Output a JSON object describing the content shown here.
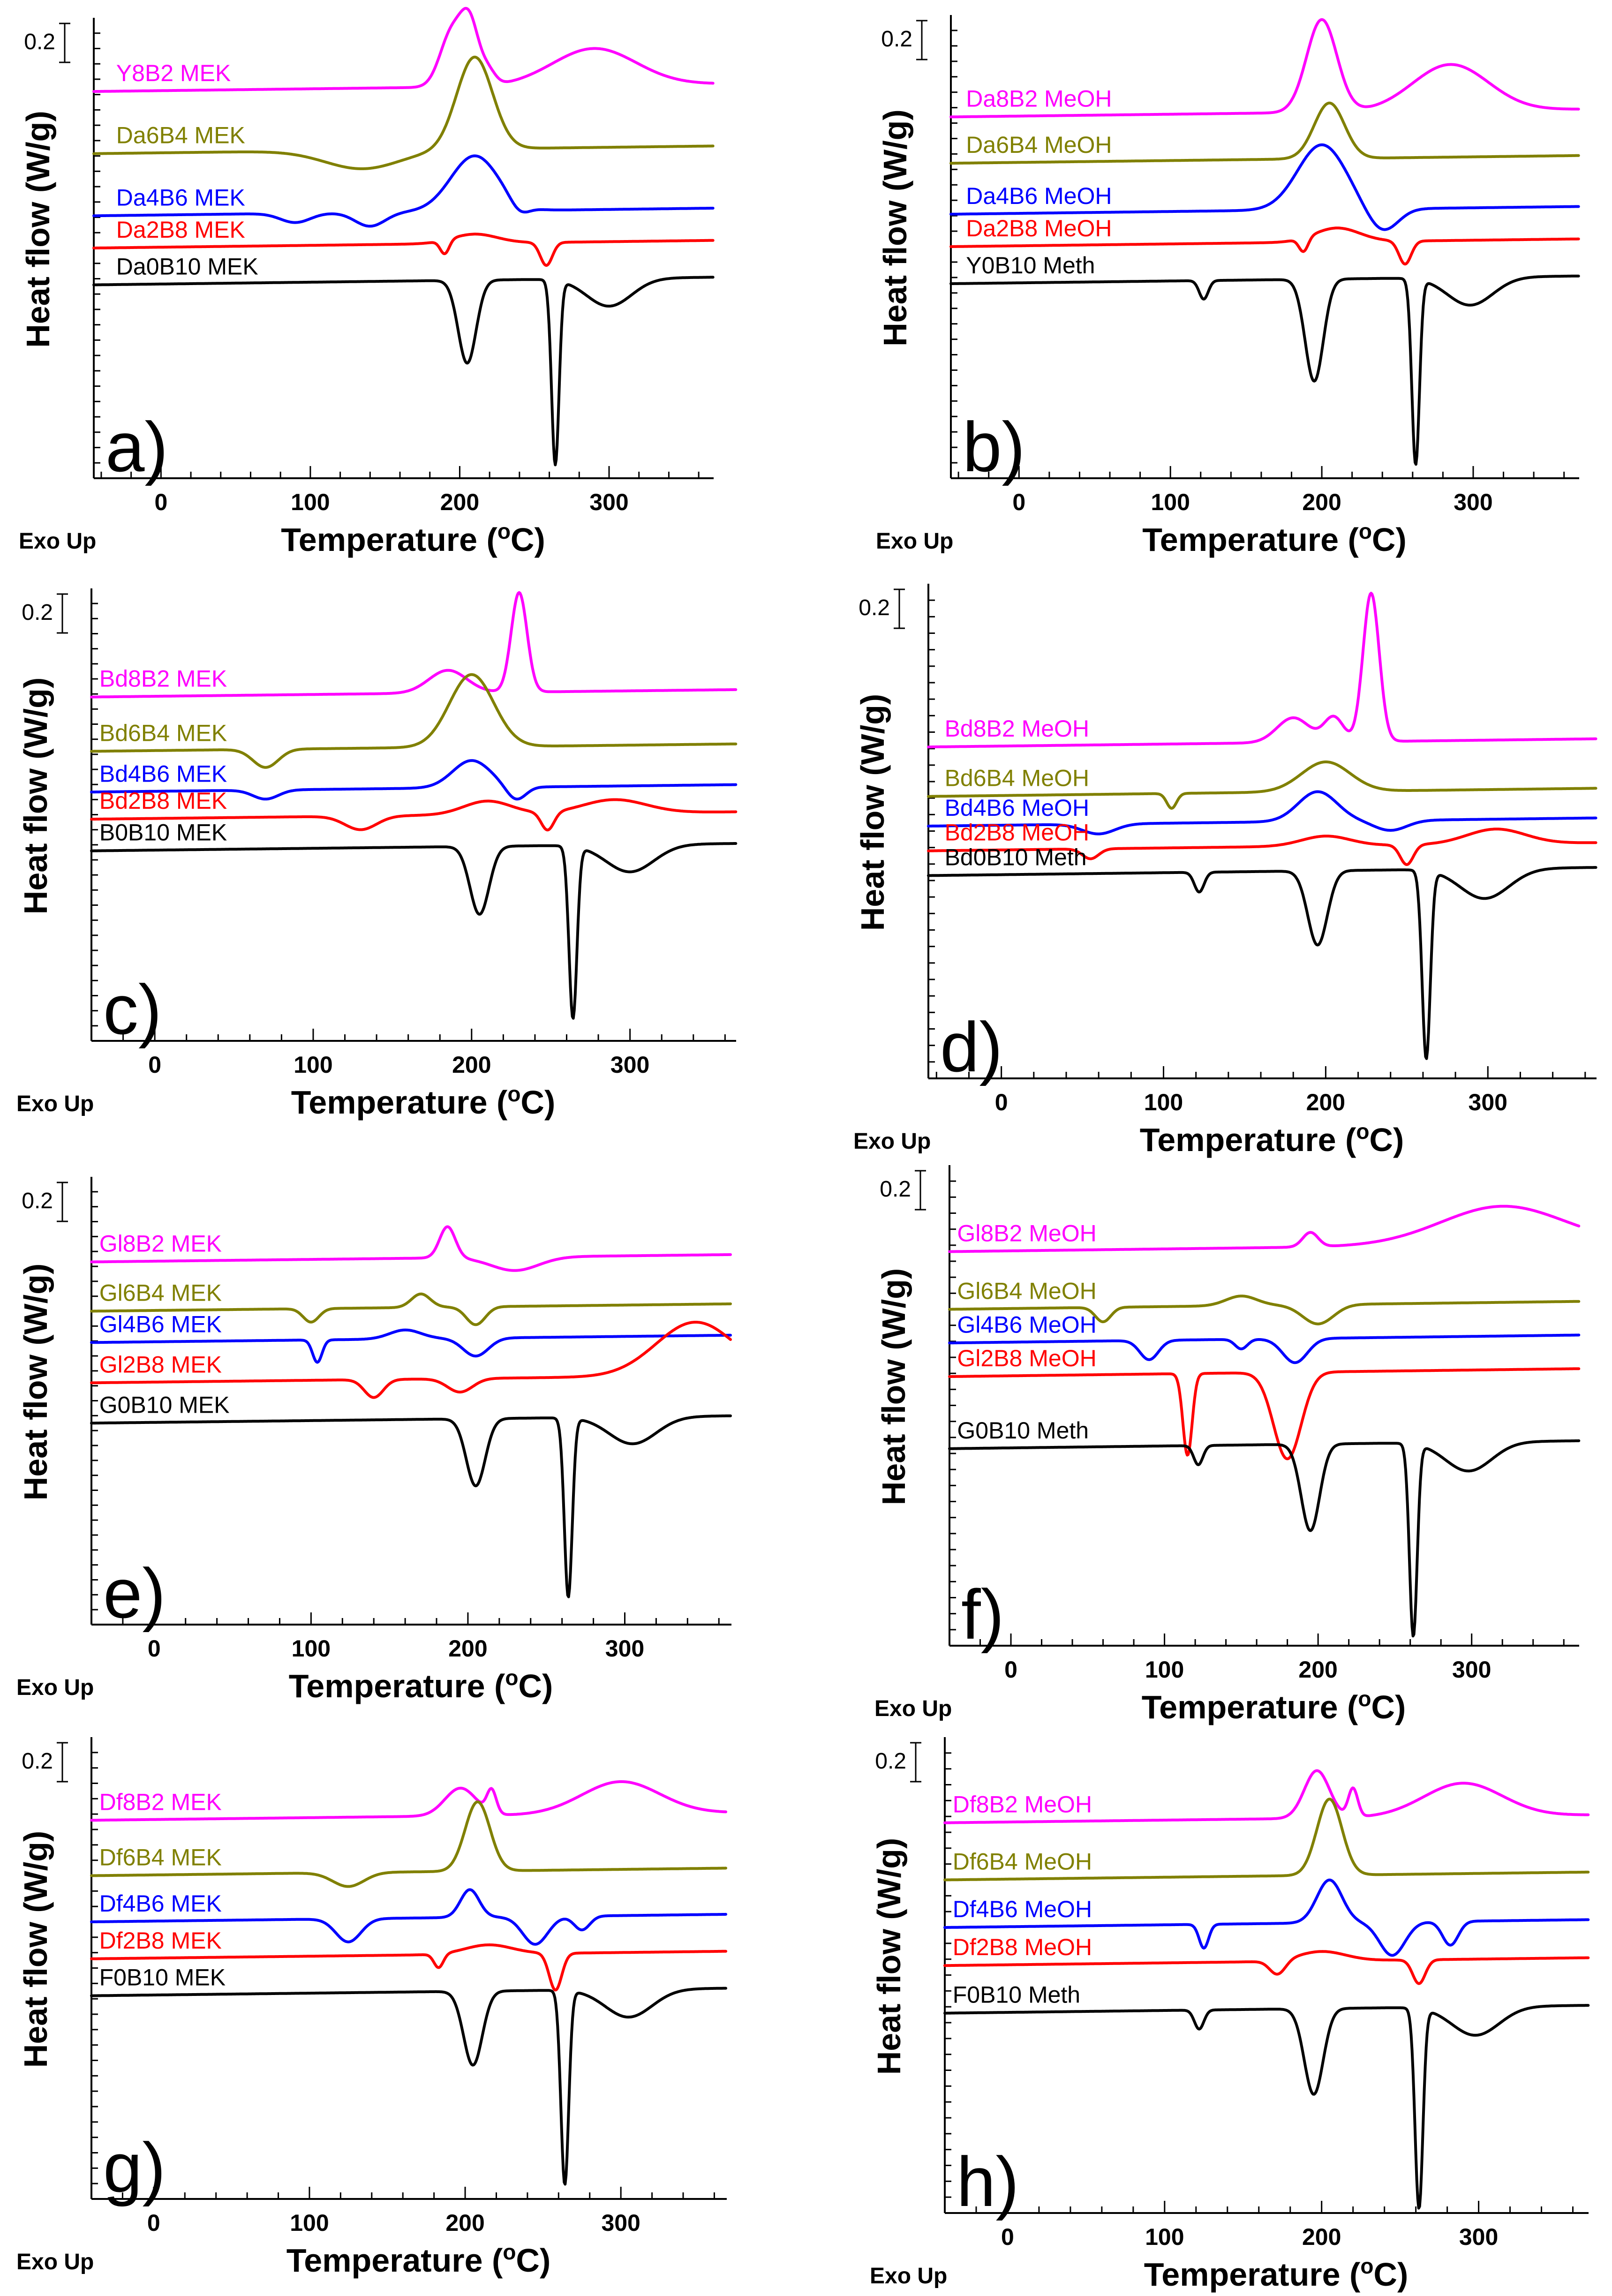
{
  "chart_data": [
    {
      "type": "line",
      "panel_label": "a)",
      "xlabel": "Temperature (°C)",
      "ylabel": "Heat flow (W/g)",
      "exo_label": "Exo Up",
      "scale_bar_label": "0.2",
      "xlim": [
        -45,
        370
      ],
      "xticks": [
        "0",
        "100",
        "200",
        "300"
      ],
      "series": [
        {
          "name": "Y8B2 MEK",
          "color": "#ff00ff",
          "label_x": -30,
          "baseline": 0.84,
          "features": [
            [
              195,
              -0.12,
              8
            ],
            [
              207,
              -0.12,
              6
            ],
            [
              219,
              -0.03,
              5
            ],
            [
              290,
              -0.08,
              28
            ]
          ]
        },
        {
          "name": "Da6B4 MEK",
          "color": "#808000",
          "label_x": -30,
          "baseline": 0.705,
          "features": [
            [
              135,
              0.04,
              25
            ],
            [
              210,
              -0.2,
              12
            ]
          ]
        },
        {
          "name": "Da4B6 MEK",
          "color": "#0000ff",
          "label_x": -30,
          "baseline": 0.57,
          "features": [
            [
              90,
              0.02,
              10
            ],
            [
              140,
              0.03,
              10
            ],
            [
              210,
              -0.12,
              16
            ],
            [
              240,
              0.02,
              6
            ]
          ]
        },
        {
          "name": "Da2B8 MEK",
          "color": "#ff0000",
          "label_x": -30,
          "baseline": 0.5,
          "features": [
            [
              190,
              0.03,
              3
            ],
            [
              210,
              -0.02,
              15
            ],
            [
              258,
              0.05,
              4
            ]
          ]
        },
        {
          "name": "Da0B10 MEK",
          "color": "#000000",
          "label_x": -30,
          "baseline": 0.42,
          "features": [
            [
              205,
              0.18,
              6
            ],
            [
              264,
              0.4,
              2.5
            ],
            [
              300,
              0.06,
              15
            ]
          ]
        }
      ]
    },
    {
      "type": "line",
      "panel_label": "b)",
      "xlabel": "Temperature (°C)",
      "ylabel": "Heat flow (W/g)",
      "exo_label": "Exo Up",
      "scale_bar_label": "0.2",
      "xlim": [
        -45,
        370
      ],
      "xticks": [
        "0",
        "100",
        "200",
        "300"
      ],
      "series": [
        {
          "name": "Da8B2 MeOH",
          "color": "#ff00ff",
          "label_x": -35,
          "baseline": 0.78,
          "features": [
            [
              200,
              -0.2,
              10
            ],
            [
              285,
              -0.1,
              25
            ]
          ]
        },
        {
          "name": "Da6B4 MeOH",
          "color": "#808000",
          "label_x": -35,
          "baseline": 0.68,
          "features": [
            [
              205,
              -0.12,
              10
            ]
          ]
        },
        {
          "name": "Da4B6 MeOH",
          "color": "#0000ff",
          "label_x": -35,
          "baseline": 0.57,
          "features": [
            [
              200,
              -0.14,
              16
            ],
            [
              240,
              0.05,
              10
            ]
          ]
        },
        {
          "name": "Da2B8 MeOH",
          "color": "#ff0000",
          "label_x": -35,
          "baseline": 0.5,
          "features": [
            [
              188,
              0.03,
              3
            ],
            [
              210,
              -0.03,
              15
            ],
            [
              255,
              0.05,
              4
            ]
          ]
        },
        {
          "name": "Y0B10 Meth",
          "color": "#000000",
          "label_x": -35,
          "baseline": 0.42,
          "features": [
            [
              122,
              0.04,
              3
            ],
            [
              195,
              0.22,
              6
            ],
            [
              262,
              0.4,
              2.5
            ],
            [
              298,
              0.06,
              15
            ]
          ]
        }
      ]
    },
    {
      "type": "line",
      "panel_label": "c)",
      "xlabel": "Temperature (°C)",
      "ylabel": "Heat flow (W/g)",
      "exo_label": "Exo Up",
      "scale_bar_label": "0.2",
      "xlim": [
        -40,
        367
      ],
      "xticks": [
        "0",
        "100",
        "200",
        "300"
      ],
      "series": [
        {
          "name": "Bd8B2 MEK",
          "color": "#ff00ff",
          "label_x": -35,
          "baseline": 0.76,
          "features": [
            [
              185,
              -0.05,
              12
            ],
            [
              230,
              -0.22,
              5
            ]
          ]
        },
        {
          "name": "Bd6B4 MEK",
          "color": "#808000",
          "label_x": -35,
          "baseline": 0.64,
          "features": [
            [
              70,
              0.04,
              8
            ],
            [
              200,
              -0.16,
              14
            ]
          ]
        },
        {
          "name": "Bd4B6 MEK",
          "color": "#0000ff",
          "label_x": -35,
          "baseline": 0.55,
          "features": [
            [
              70,
              0.02,
              8
            ],
            [
              200,
              -0.06,
              12
            ],
            [
              228,
              0.03,
              6
            ]
          ]
        },
        {
          "name": "Bd2B8 MEK",
          "color": "#ff0000",
          "label_x": -35,
          "baseline": 0.49,
          "features": [
            [
              130,
              0.03,
              10
            ],
            [
              210,
              -0.03,
              15
            ],
            [
              248,
              0.04,
              4
            ],
            [
              290,
              -0.03,
              20
            ]
          ]
        },
        {
          "name": "B0B10 MEK",
          "color": "#000000",
          "label_x": -35,
          "baseline": 0.42,
          "features": [
            [
              205,
              0.15,
              6
            ],
            [
              264,
              0.38,
              2.5
            ],
            [
              300,
              0.06,
              15
            ]
          ]
        }
      ]
    },
    {
      "type": "line",
      "panel_label": "d)",
      "xlabel": "Temperature (°C)",
      "ylabel": "Heat flow (W/g)",
      "exo_label": "Exo Up",
      "scale_bar_label": "0.2",
      "xlim": [
        -45,
        367
      ],
      "xticks": [
        "0",
        "100",
        "200",
        "300"
      ],
      "series": [
        {
          "name": "Bd8B2 MeOH",
          "color": "#ff00ff",
          "label_x": -35,
          "baseline": 0.67,
          "features": [
            [
              180,
              -0.05,
              10
            ],
            [
              205,
              -0.05,
              6
            ],
            [
              228,
              -0.3,
              5
            ]
          ]
        },
        {
          "name": "Bd6B4 MeOH",
          "color": "#808000",
          "label_x": -35,
          "baseline": 0.57,
          "features": [
            [
              105,
              0.03,
              3
            ],
            [
              200,
              -0.06,
              15
            ]
          ]
        },
        {
          "name": "Bd4B6 MeOH",
          "color": "#0000ff",
          "label_x": -35,
          "baseline": 0.51,
          "features": [
            [
              60,
              0.02,
              10
            ],
            [
              195,
              -0.06,
              12
            ],
            [
              240,
              0.02,
              10
            ]
          ]
        },
        {
          "name": "Bd2B8 MeOH",
          "color": "#ff0000",
          "label_x": -35,
          "baseline": 0.46,
          "features": [
            [
              55,
              0.02,
              5
            ],
            [
              200,
              -0.02,
              15
            ],
            [
              250,
              0.04,
              4
            ],
            [
              305,
              -0.03,
              18
            ]
          ]
        },
        {
          "name": "Bd0B10 Meth",
          "color": "#000000",
          "label_x": -35,
          "baseline": 0.41,
          "features": [
            [
              122,
              0.04,
              3
            ],
            [
              195,
              0.15,
              6
            ],
            [
              262,
              0.38,
              2.5
            ],
            [
              298,
              0.06,
              15
            ]
          ]
        }
      ]
    },
    {
      "type": "line",
      "panel_label": "e)",
      "xlabel": "Temperature (°C)",
      "ylabel": "Heat flow (W/g)",
      "exo_label": "Exo Up",
      "scale_bar_label": "0.2",
      "xlim": [
        -40,
        368
      ],
      "xticks": [
        "0",
        "100",
        "200",
        "300"
      ],
      "series": [
        {
          "name": "Gl8B2 MEK",
          "color": "#ff00ff",
          "label_x": -35,
          "baseline": 0.81,
          "features": [
            [
              187,
              -0.07,
              5
            ],
            [
              230,
              0.03,
              15
            ]
          ]
        },
        {
          "name": "Gl6B4 MEK",
          "color": "#808000",
          "label_x": -35,
          "baseline": 0.7,
          "features": [
            [
              100,
              0.03,
              5
            ],
            [
              170,
              -0.03,
              6
            ],
            [
              205,
              0.04,
              6
            ]
          ]
        },
        {
          "name": "Gl4B6 MEK",
          "color": "#0000ff",
          "label_x": -35,
          "baseline": 0.63,
          "features": [
            [
              104,
              0.05,
              3
            ],
            [
              160,
              -0.02,
              10
            ],
            [
              205,
              0.04,
              8
            ]
          ]
        },
        {
          "name": "Gl2B8 MEK",
          "color": "#ff0000",
          "label_x": -35,
          "baseline": 0.54,
          "features": [
            [
              140,
              0.04,
              6
            ],
            [
              195,
              0.03,
              8
            ],
            [
              345,
              -0.12,
              25
            ]
          ]
        },
        {
          "name": "G0B10 MEK",
          "color": "#000000",
          "label_x": -35,
          "baseline": 0.45,
          "features": [
            [
              205,
              0.15,
              6
            ],
            [
              264,
              0.4,
              2.5
            ],
            [
              305,
              0.06,
              15
            ]
          ]
        }
      ]
    },
    {
      "type": "line",
      "panel_label": "f)",
      "xlabel": "Temperature (°C)",
      "ylabel": "Heat flow (W/g)",
      "exo_label": "Exo Up",
      "scale_bar_label": "0.2",
      "xlim": [
        -40,
        370
      ],
      "xticks": [
        "0",
        "100",
        "200",
        "300"
      ],
      "series": [
        {
          "name": "Gl8B2 MeOH",
          "color": "#ff00ff",
          "label_x": -35,
          "baseline": 0.82,
          "features": [
            [
              195,
              -0.03,
              5
            ],
            [
              320,
              -0.08,
              40
            ]
          ]
        },
        {
          "name": "Gl6B4 MeOH",
          "color": "#808000",
          "label_x": -35,
          "baseline": 0.7,
          "features": [
            [
              60,
              0.03,
              5
            ],
            [
              150,
              -0.02,
              10
            ],
            [
              200,
              0.04,
              10
            ]
          ]
        },
        {
          "name": "Gl4B6 MeOH",
          "color": "#0000ff",
          "label_x": -35,
          "baseline": 0.63,
          "features": [
            [
              90,
              0.04,
              6
            ],
            [
              150,
              0.02,
              4
            ],
            [
              185,
              0.05,
              8
            ]
          ]
        },
        {
          "name": "Gl2B8 MeOH",
          "color": "#ff0000",
          "label_x": -35,
          "baseline": 0.56,
          "features": [
            [
              115,
              0.17,
              3
            ],
            [
              180,
              0.18,
              9
            ]
          ]
        },
        {
          "name": "G0B10 Meth",
          "color": "#000000",
          "label_x": -35,
          "baseline": 0.41,
          "features": [
            [
              122,
              0.04,
              3
            ],
            [
              195,
              0.18,
              6
            ],
            [
              262,
              0.4,
              2.5
            ],
            [
              298,
              0.06,
              15
            ]
          ]
        }
      ]
    },
    {
      "type": "line",
      "panel_label": "g)",
      "xlabel": "Temperature (°C)",
      "ylabel": "Heat flow (W/g)",
      "exo_label": "Exo Up",
      "scale_bar_label": "0.2",
      "xlim": [
        -40,
        368
      ],
      "xticks": [
        "0",
        "100",
        "200",
        "300"
      ],
      "series": [
        {
          "name": "Df8B2 MEK",
          "color": "#ff00ff",
          "label_x": -35,
          "baseline": 0.82,
          "features": [
            [
              197,
              -0.06,
              10
            ],
            [
              217,
              -0.05,
              3
            ],
            [
              300,
              -0.07,
              25
            ]
          ]
        },
        {
          "name": "Df6B4 MEK",
          "color": "#808000",
          "label_x": -35,
          "baseline": 0.7,
          "features": [
            [
              125,
              0.03,
              10
            ],
            [
              208,
              -0.15,
              8
            ]
          ]
        },
        {
          "name": "Df4B6 MEK",
          "color": "#0000ff",
          "label_x": -35,
          "baseline": 0.6,
          "features": [
            [
              125,
              0.05,
              8
            ],
            [
              203,
              -0.06,
              6
            ],
            [
              245,
              0.06,
              8
            ],
            [
              275,
              0.03,
              5
            ]
          ]
        },
        {
          "name": "Df2B8 MEK",
          "color": "#ff0000",
          "label_x": -35,
          "baseline": 0.52,
          "features": [
            [
              183,
              0.03,
              3
            ],
            [
              215,
              -0.02,
              15
            ],
            [
              258,
              0.08,
              4
            ]
          ]
        },
        {
          "name": "F0B10 MEK",
          "color": "#000000",
          "label_x": -35,
          "baseline": 0.44,
          "features": [
            [
              205,
              0.16,
              6
            ],
            [
              264,
              0.42,
              2.5
            ],
            [
              305,
              0.06,
              15
            ]
          ]
        }
      ]
    },
    {
      "type": "line",
      "panel_label": "h)",
      "xlabel": "Temperature (°C)",
      "ylabel": "Heat flow (W/g)",
      "exo_label": "Exo Up",
      "scale_bar_label": "0.2",
      "xlim": [
        -40,
        370
      ],
      "xticks": [
        "0",
        "100",
        "200",
        "300"
      ],
      "series": [
        {
          "name": "Df8B2 MeOH",
          "color": "#ff00ff",
          "label_x": -35,
          "baseline": 0.82,
          "features": [
            [
              197,
              -0.1,
              8
            ],
            [
              220,
              -0.06,
              3
            ],
            [
              290,
              -0.07,
              25
            ]
          ]
        },
        {
          "name": "Df6B4 MeOH",
          "color": "#808000",
          "label_x": -35,
          "baseline": 0.7,
          "features": [
            [
              205,
              -0.16,
              8
            ]
          ]
        },
        {
          "name": "Df4B6 MeOH",
          "color": "#0000ff",
          "label_x": -35,
          "baseline": 0.6,
          "features": [
            [
              125,
              0.05,
              3
            ],
            [
              205,
              -0.09,
              8
            ],
            [
              245,
              0.07,
              8
            ],
            [
              282,
              0.05,
              5
            ]
          ]
        },
        {
          "name": "Df2B8 MeOH",
          "color": "#ff0000",
          "label_x": -35,
          "baseline": 0.52,
          "features": [
            [
              172,
              0.03,
              5
            ],
            [
              200,
              -0.02,
              15
            ],
            [
              262,
              0.05,
              4
            ]
          ]
        },
        {
          "name": "F0B10 Meth",
          "color": "#000000",
          "label_x": -35,
          "baseline": 0.42,
          "features": [
            [
              122,
              0.04,
              3
            ],
            [
              195,
              0.18,
              6
            ],
            [
              262,
              0.42,
              2.5
            ],
            [
              298,
              0.06,
              15
            ]
          ]
        }
      ]
    }
  ]
}
